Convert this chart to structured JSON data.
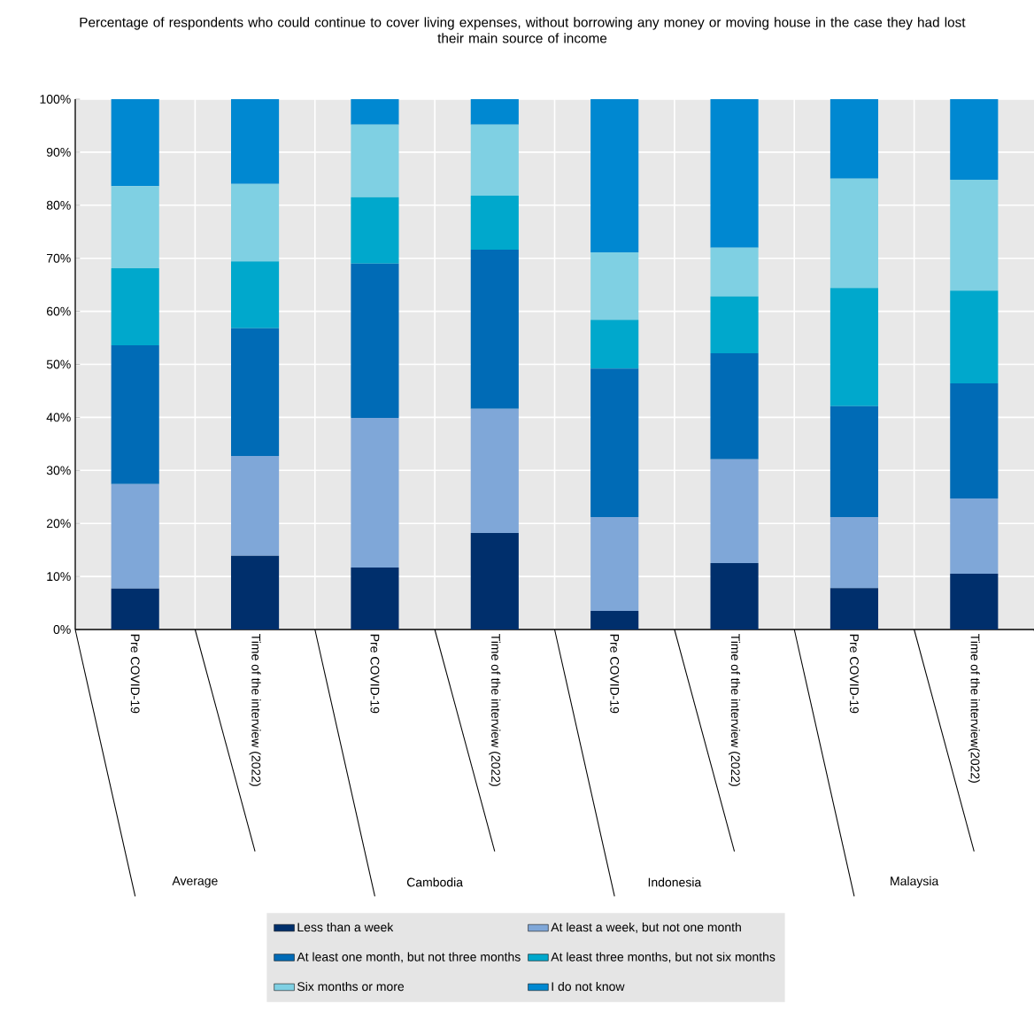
{
  "chart_data": {
    "type": "bar",
    "stacked": true,
    "title": "Percentage of respondents who could continue to cover living expenses, without borrowing any money or moving house in the case they had lost their main source of income",
    "categories": [
      "Pre COVID-19",
      "Time of the interview (2022)",
      "Pre COVID-19",
      "Time of the interview (2022)",
      "Pre COVID-19",
      "Time of the interview (2022)",
      "Pre COVID-19",
      "Time of the interview(2022)"
    ],
    "annotations": [
      "Average",
      "Cambodia",
      "Indonesia",
      "Malaysia"
    ],
    "series": [
      {
        "name": "Less than a week",
        "color": "#002f6c",
        "values": [
          7.7,
          13.9,
          11.7,
          18.2,
          3.5,
          12.5,
          7.8,
          10.5
        ]
      },
      {
        "name": "At least a week, but not one month",
        "color": "#7fa7d8",
        "values": [
          19.7,
          18.8,
          28.2,
          23.4,
          17.7,
          19.6,
          13.4,
          14.2
        ]
      },
      {
        "name": "At least one month, but not three months",
        "color": "#006bb6",
        "values": [
          26.2,
          24.1,
          29.1,
          30.0,
          28.0,
          20.0,
          20.9,
          21.7
        ]
      },
      {
        "name": "At least three months, but not six months",
        "color": "#00a8cc",
        "values": [
          14.5,
          12.6,
          12.5,
          10.2,
          9.2,
          10.7,
          22.3,
          17.5
        ]
      },
      {
        "name": "Six months or more",
        "color": "#7fd0e3",
        "values": [
          15.5,
          14.6,
          13.7,
          13.4,
          12.7,
          9.2,
          20.6,
          20.9
        ]
      },
      {
        "name": "I do not know",
        "color": "#0088d1",
        "values": [
          16.4,
          16.0,
          4.8,
          4.8,
          28.9,
          28.0,
          15.0,
          15.2
        ]
      }
    ],
    "ylim": [
      0,
      100
    ],
    "yticks": [
      {
        "value": 0,
        "label": "0%"
      },
      {
        "value": 10,
        "label": "10%"
      },
      {
        "value": 20,
        "label": "20%"
      },
      {
        "value": 30,
        "label": "30%"
      },
      {
        "value": 40,
        "label": "40%"
      },
      {
        "value": 50,
        "label": "50%"
      },
      {
        "value": 60,
        "label": "60%"
      },
      {
        "value": 70,
        "label": "70%"
      },
      {
        "value": 80,
        "label": "80%"
      },
      {
        "value": 90,
        "label": "90%"
      },
      {
        "value": 100,
        "label": "100%"
      }
    ],
    "grid": true,
    "legend": "bottom"
  }
}
